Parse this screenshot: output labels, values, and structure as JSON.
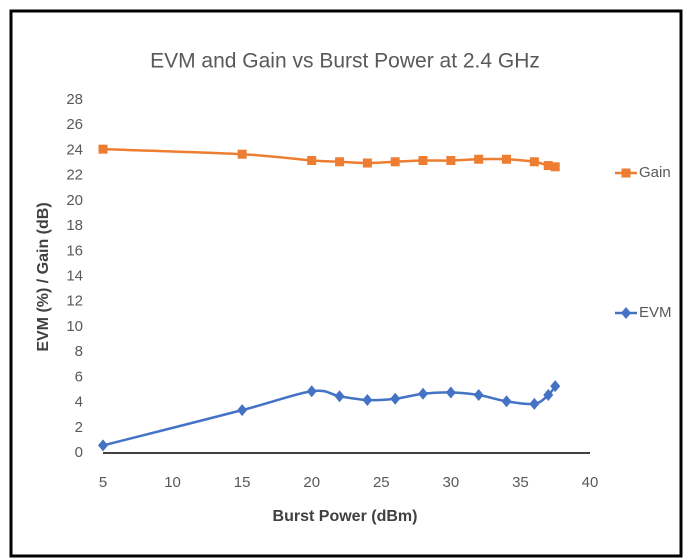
{
  "chart_data": {
    "type": "line",
    "title": "EVM and Gain vs Burst Power at 2.4 GHz",
    "xlabel": "Burst Power (dBm)",
    "ylabel": "EVM (%) / Gain (dB)",
    "x": [
      5,
      15,
      20,
      22,
      24,
      26,
      28,
      30,
      32,
      34,
      36,
      37,
      37.5
    ],
    "series": [
      {
        "name": "Gain",
        "color": "#ed7d31",
        "marker": "square",
        "values": [
          24.1,
          23.7,
          23.2,
          23.1,
          23.0,
          23.1,
          23.2,
          23.2,
          23.3,
          23.3,
          23.1,
          22.8,
          22.7
        ]
      },
      {
        "name": "EVM",
        "color": "#4472c4",
        "marker": "diamond",
        "values": [
          0.6,
          3.4,
          4.9,
          4.5,
          4.2,
          4.3,
          4.7,
          4.8,
          4.6,
          4.1,
          3.9,
          4.6,
          5.3
        ]
      }
    ],
    "xlim": [
      5,
      40
    ],
    "xticks": [
      5,
      10,
      15,
      20,
      25,
      30,
      35,
      40
    ],
    "ylim": [
      0,
      28
    ],
    "yticks": [
      0,
      2,
      4,
      6,
      8,
      10,
      12,
      14,
      16,
      18,
      20,
      22,
      24,
      26,
      28
    ],
    "grid": false,
    "legend": "right"
  }
}
